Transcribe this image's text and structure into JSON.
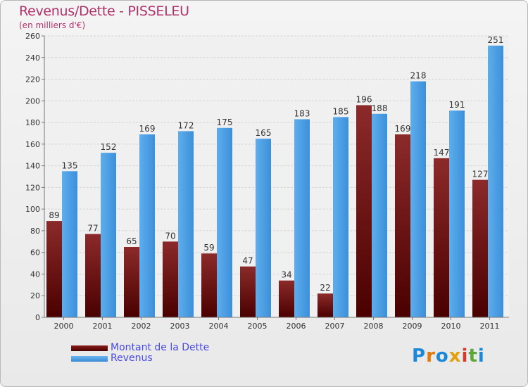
{
  "header": {
    "title": "Revenus/Dette - PISSELEU",
    "subtitle": "(en milliers d'€)"
  },
  "legend": {
    "dette_label": "Montant de la Dette",
    "revenus_label": "Revenus"
  },
  "logo": {
    "letters": [
      "P",
      "r",
      "o",
      "x",
      "i",
      "t",
      "i"
    ],
    "colors": [
      "#1e88d8",
      "#e07a10",
      "#1e88d8",
      "#e0a010",
      "#d23c2c",
      "#5aa83a",
      "#1e88d8"
    ]
  },
  "chart_data": {
    "type": "bar",
    "title": "Revenus/Dette - PISSELEU",
    "subtitle": "(en milliers d'€)",
    "xlabel": "",
    "ylabel": "",
    "categories": [
      "2000",
      "2001",
      "2002",
      "2003",
      "2004",
      "2005",
      "2006",
      "2007",
      "2008",
      "2009",
      "2010",
      "2011"
    ],
    "series": [
      {
        "name": "Montant de la Dette",
        "color": "#6e0a0a",
        "values": [
          89,
          77,
          65,
          70,
          59,
          47,
          34,
          22,
          196,
          169,
          147,
          127
        ]
      },
      {
        "name": "Revenus",
        "color": "#4aa0e6",
        "values": [
          135,
          152,
          169,
          172,
          175,
          165,
          183,
          185,
          188,
          218,
          191,
          251
        ]
      }
    ],
    "ylim": [
      0,
      260
    ],
    "yticks": [
      0,
      20,
      40,
      60,
      80,
      100,
      120,
      140,
      160,
      180,
      200,
      220,
      240,
      260
    ],
    "grid": true,
    "legend_position": "bottom-left"
  }
}
